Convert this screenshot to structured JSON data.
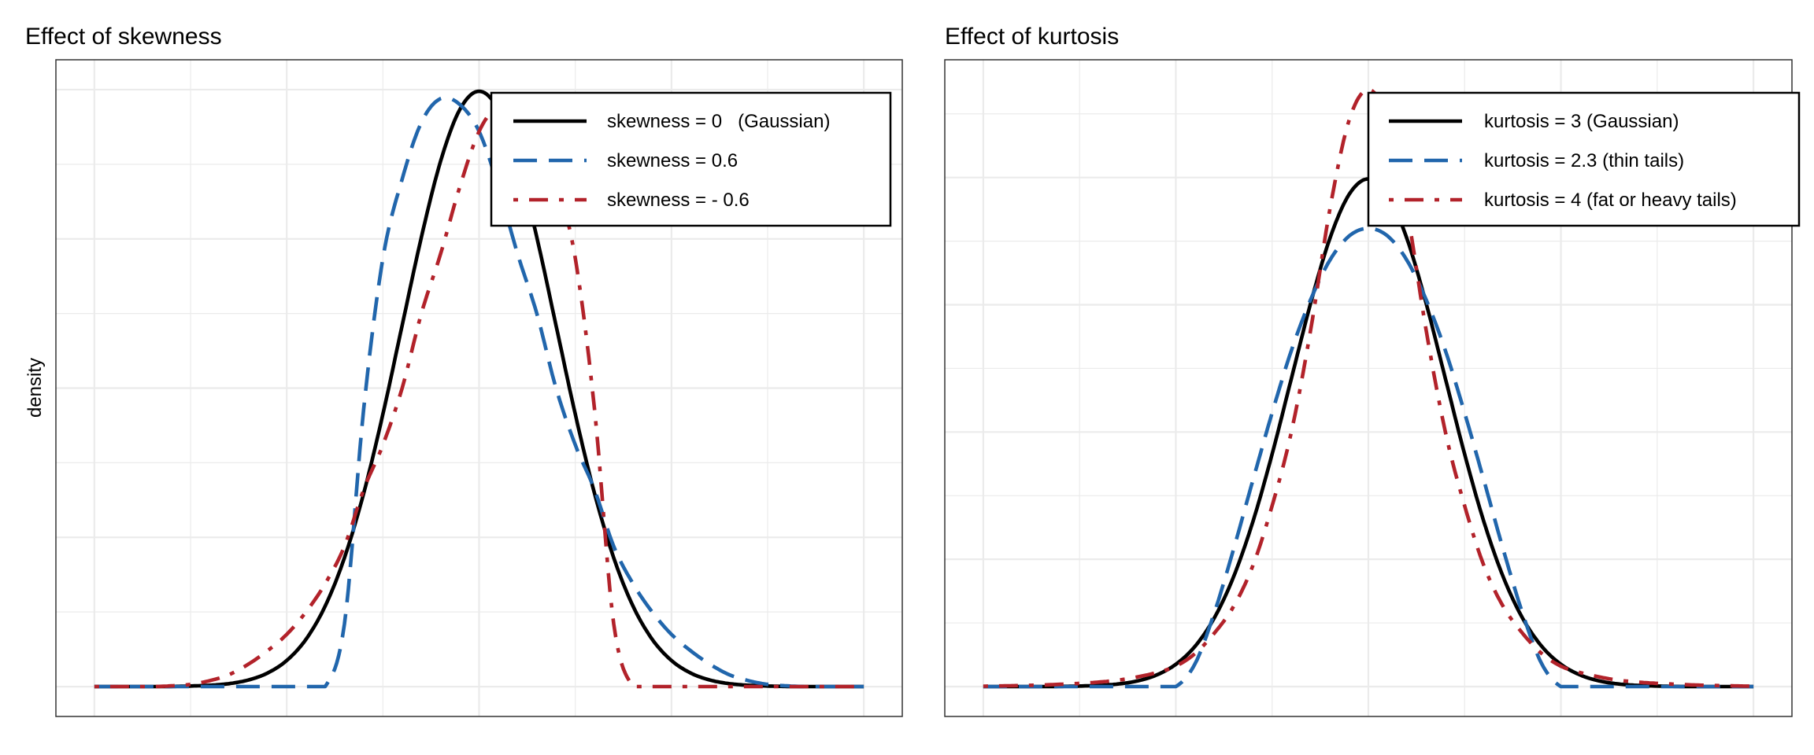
{
  "chart_data": [
    {
      "type": "line",
      "title": "Effect of skewness",
      "xlabel": "",
      "ylabel": "density",
      "xlim": [
        -5.5,
        5.5
      ],
      "ylim": [
        -0.02,
        0.42
      ],
      "grid": true,
      "x_tick_labels_shown": false,
      "y_tick_labels_shown": false,
      "legend_position": "top-right",
      "x": [
        -5,
        -4.75,
        -4.5,
        -4.25,
        -4,
        -3.75,
        -3.5,
        -3.25,
        -3,
        -2.75,
        -2.5,
        -2.25,
        -2,
        -1.75,
        -1.5,
        -1.25,
        -1,
        -0.75,
        -0.5,
        -0.25,
        0,
        0.25,
        0.5,
        0.75,
        1,
        1.25,
        1.5,
        1.75,
        2,
        2.25,
        2.5,
        2.75,
        3,
        3.25,
        3.5,
        3.75,
        4,
        4.25,
        4.5,
        4.75,
        5
      ],
      "series": [
        {
          "name": "skewness = 0   (Gaussian)",
          "color": "#000000",
          "linetype": "solid",
          "values": [
            0,
            0,
            0,
            0,
            0.0001,
            0.0004,
            0.0009,
            0.002,
            0.0044,
            0.0091,
            0.0175,
            0.0317,
            0.054,
            0.0863,
            0.1295,
            0.1826,
            0.242,
            0.3011,
            0.3521,
            0.3867,
            0.3989,
            0.3867,
            0.3521,
            0.3011,
            0.242,
            0.1826,
            0.1295,
            0.0863,
            0.054,
            0.0317,
            0.0175,
            0.0091,
            0.0044,
            0.002,
            0.0009,
            0.0004,
            0.0001,
            0,
            0,
            0,
            0
          ]
        },
        {
          "name": "skewness = 0.6",
          "color": "#2166AC",
          "linetype": "dashed",
          "values": [
            0,
            0,
            0,
            0,
            0,
            0,
            0,
            0,
            0,
            0,
            0,
            0,
            0,
            0.042,
            0.186,
            0.287,
            0.34,
            0.378,
            0.394,
            0.39,
            0.372,
            0.335,
            0.29,
            0.25,
            0.2,
            0.162,
            0.132,
            0.094,
            0.069,
            0.05,
            0.035,
            0.024,
            0.015,
            0.008,
            0.004,
            0.0015,
            0.0005,
            0,
            0,
            0,
            0
          ]
        },
        {
          "name": "skewness = - 0.6",
          "color": "#B2222A",
          "linetype": "dotdash",
          "values": [
            0,
            0,
            0,
            0,
            0.0005,
            0.0015,
            0.004,
            0.008,
            0.015,
            0.024,
            0.035,
            0.05,
            0.069,
            0.094,
            0.132,
            0.162,
            0.2,
            0.25,
            0.29,
            0.335,
            0.372,
            0.39,
            0.394,
            0.378,
            0.34,
            0.287,
            0.186,
            0.042,
            0,
            0,
            0,
            0,
            0,
            0,
            0,
            0,
            0,
            0,
            0,
            0,
            0
          ]
        }
      ]
    },
    {
      "type": "line",
      "title": "Effect of kurtosis",
      "xlabel": "",
      "ylabel": "",
      "xlim": [
        -5.5,
        5.5
      ],
      "ylim": [
        -0.0235,
        0.4925
      ],
      "grid": true,
      "x_tick_labels_shown": false,
      "y_tick_labels_shown": false,
      "legend_position": "top-right",
      "x": [
        -5,
        -4.75,
        -4.5,
        -4.25,
        -4,
        -3.75,
        -3.5,
        -3.25,
        -3,
        -2.75,
        -2.5,
        -2.25,
        -2,
        -1.75,
        -1.5,
        -1.25,
        -1,
        -0.75,
        -0.5,
        -0.25,
        0,
        0.25,
        0.5,
        0.75,
        1,
        1.25,
        1.5,
        1.75,
        2,
        2.25,
        2.5,
        2.75,
        3,
        3.25,
        3.5,
        3.75,
        4,
        4.25,
        4.5,
        4.75,
        5
      ],
      "series": [
        {
          "name": "kurtosis = 3 (Gaussian)",
          "color": "#000000",
          "linetype": "solid",
          "values": [
            0,
            0,
            0,
            0,
            0.0001,
            0.0004,
            0.0009,
            0.002,
            0.0044,
            0.0091,
            0.0175,
            0.0317,
            0.054,
            0.0863,
            0.1295,
            0.1826,
            0.242,
            0.3011,
            0.3521,
            0.3867,
            0.3989,
            0.3867,
            0.3521,
            0.3011,
            0.242,
            0.1826,
            0.1295,
            0.0863,
            0.054,
            0.0317,
            0.0175,
            0.0091,
            0.0044,
            0.002,
            0.0009,
            0.0004,
            0.0001,
            0,
            0,
            0,
            0
          ]
        },
        {
          "name": "kurtosis = 2.3 (thin tails)",
          "color": "#2166AC",
          "linetype": "dashed",
          "values": [
            0,
            0,
            0,
            0,
            0,
            0,
            0,
            0,
            0,
            0,
            0,
            0.018,
            0.058,
            0.108,
            0.162,
            0.215,
            0.264,
            0.304,
            0.335,
            0.354,
            0.36,
            0.354,
            0.335,
            0.304,
            0.264,
            0.215,
            0.162,
            0.108,
            0.058,
            0.018,
            0,
            0,
            0,
            0,
            0,
            0,
            0,
            0,
            0,
            0,
            0
          ]
        },
        {
          "name": "kurtosis = 4 (fat or heavy tails)",
          "color": "#B2222A",
          "linetype": "dotdash",
          "values": [
            0.0003,
            0.0005,
            0.0008,
            0.0012,
            0.0018,
            0.0025,
            0.0035,
            0.005,
            0.0075,
            0.011,
            0.016,
            0.026,
            0.042,
            0.063,
            0.095,
            0.142,
            0.2,
            0.28,
            0.375,
            0.445,
            0.469,
            0.445,
            0.375,
            0.28,
            0.2,
            0.142,
            0.095,
            0.063,
            0.042,
            0.026,
            0.016,
            0.011,
            0.0075,
            0.005,
            0.0035,
            0.0025,
            0.0018,
            0.0012,
            0.0008,
            0.0005,
            0.0003
          ]
        }
      ]
    }
  ]
}
